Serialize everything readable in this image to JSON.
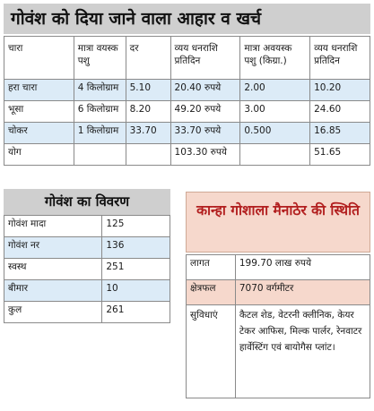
{
  "diet_table": {
    "title": "गोवंश को दिया जाने वाला आहार व खर्च",
    "headers": [
      "चारा",
      "मात्रा वयस्क पशु",
      "दर",
      "व्यय धनराशि प्रतिदिन",
      "मात्रा अवयस्क पशु (किग्रा.)",
      "व्यय धनराशि प्रतिदिन"
    ],
    "rows": [
      [
        "हरा चारा",
        "4 किलोग्राम",
        "5.10",
        "20.40 रुपये",
        "2.00",
        "10.20"
      ],
      [
        "भूसा",
        "6 किलोग्राम",
        "8.20",
        "49.20 रुपये",
        "3.00",
        "24.60"
      ],
      [
        "चोकर",
        "1 किलोग्राम",
        "33.70",
        "33.70 रुपये",
        "0.500",
        "16.85"
      ],
      [
        "योग",
        "",
        "",
        "103.30 रुपये",
        "",
        "51.65"
      ]
    ],
    "highlight_color": "#dcebf7"
  },
  "cattle_stats": {
    "title": "गोवंश का विवरण",
    "rows": [
      [
        "गोवंश मादा",
        "125"
      ],
      [
        "गोवंश नर",
        "136"
      ],
      [
        "स्वस्थ",
        "251"
      ],
      [
        "बीमार",
        "10"
      ],
      [
        "कुल",
        "261"
      ]
    ]
  },
  "gaushala": {
    "title": "कान्हा गोशाला मैनाठेर की स्थिति",
    "title_color": "#b21f1f",
    "highlight_color": "#f6d8cc",
    "rows": [
      [
        "लागत",
        "199.70 लाख रुपये"
      ],
      [
        "क्षेत्रफल",
        "7070 वर्गमीटर"
      ],
      [
        "सुविधाएं",
        "कैटल शेड, वेटरनी क्लीनिक, केयर टेकर आफिस, मिल्क पार्लर, रेनवाटर हार्वेस्टिंग एवं बायोगैस प्लांट।"
      ]
    ]
  }
}
